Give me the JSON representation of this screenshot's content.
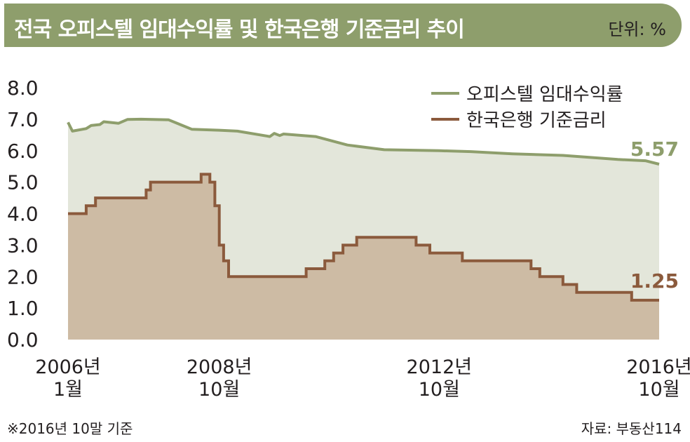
{
  "header": {
    "title": "전국 오피스텔 임대수익률 및 한국은행 기준금리 추이",
    "unit": "단위: %"
  },
  "footnote": "※2016년 10말 기준",
  "source": "자료: 부동산114",
  "colors": {
    "header_bg": "#8e9e6c",
    "office_line": "#8e9e6c",
    "office_fill": "#e3e6da",
    "rate_line": "#8b5a3c",
    "rate_fill": "#cdbba4"
  },
  "chart_data": {
    "type": "area",
    "ylim": [
      0,
      8
    ],
    "y_ticks": [
      "0.0",
      "1.0",
      "2.0",
      "3.0",
      "4.0",
      "5.0",
      "6.0",
      "7.0",
      "8.0"
    ],
    "x_ticks": [
      {
        "x": 2006.0,
        "line1": "2006년",
        "line2": "1월"
      },
      {
        "x": 2008.75,
        "line1": "2008년",
        "line2": "10월"
      },
      {
        "x": 2012.75,
        "line1": "2012년",
        "line2": "10월"
      },
      {
        "x": 2016.75,
        "line1": "2016년",
        "line2": "10월"
      }
    ],
    "xlim": [
      2006.0,
      2016.75
    ],
    "grid": false,
    "legend_position": "top-right",
    "series": [
      {
        "name": "오피스텔 임대수익률",
        "end_label": "5.57",
        "points": [
          [
            2006.0,
            6.9
          ],
          [
            2006.08,
            6.62
          ],
          [
            2006.33,
            6.7
          ],
          [
            2006.42,
            6.8
          ],
          [
            2006.58,
            6.83
          ],
          [
            2006.65,
            6.92
          ],
          [
            2006.92,
            6.87
          ],
          [
            2007.08,
            6.99
          ],
          [
            2007.33,
            7.0
          ],
          [
            2007.83,
            6.98
          ],
          [
            2008.25,
            6.68
          ],
          [
            2008.75,
            6.65
          ],
          [
            2009.08,
            6.62
          ],
          [
            2009.67,
            6.45
          ],
          [
            2009.75,
            6.55
          ],
          [
            2009.85,
            6.48
          ],
          [
            2009.92,
            6.53
          ],
          [
            2010.5,
            6.45
          ],
          [
            2011.08,
            6.18
          ],
          [
            2011.75,
            6.03
          ],
          [
            2012.75,
            6.0
          ],
          [
            2013.33,
            5.97
          ],
          [
            2014.08,
            5.9
          ],
          [
            2015.0,
            5.85
          ],
          [
            2016.0,
            5.72
          ],
          [
            2016.5,
            5.68
          ],
          [
            2016.75,
            5.57
          ]
        ]
      },
      {
        "name": "한국은행 기준금리",
        "end_label": "1.25",
        "step_points": [
          [
            2006.0,
            4.0
          ],
          [
            2006.33,
            4.25
          ],
          [
            2006.5,
            4.5
          ],
          [
            2007.42,
            4.75
          ],
          [
            2007.5,
            5.0
          ],
          [
            2008.42,
            5.25
          ],
          [
            2008.58,
            5.0
          ],
          [
            2008.67,
            4.25
          ],
          [
            2008.75,
            3.0
          ],
          [
            2008.83,
            2.5
          ],
          [
            2008.92,
            2.0
          ],
          [
            2010.33,
            2.25
          ],
          [
            2010.67,
            2.5
          ],
          [
            2010.83,
            2.75
          ],
          [
            2011.0,
            3.0
          ],
          [
            2011.25,
            3.25
          ],
          [
            2012.33,
            3.0
          ],
          [
            2012.58,
            2.75
          ],
          [
            2013.17,
            2.5
          ],
          [
            2014.42,
            2.25
          ],
          [
            2014.58,
            2.0
          ],
          [
            2015.0,
            1.75
          ],
          [
            2015.25,
            1.5
          ],
          [
            2016.25,
            1.25
          ],
          [
            2016.75,
            1.25
          ]
        ]
      }
    ]
  }
}
